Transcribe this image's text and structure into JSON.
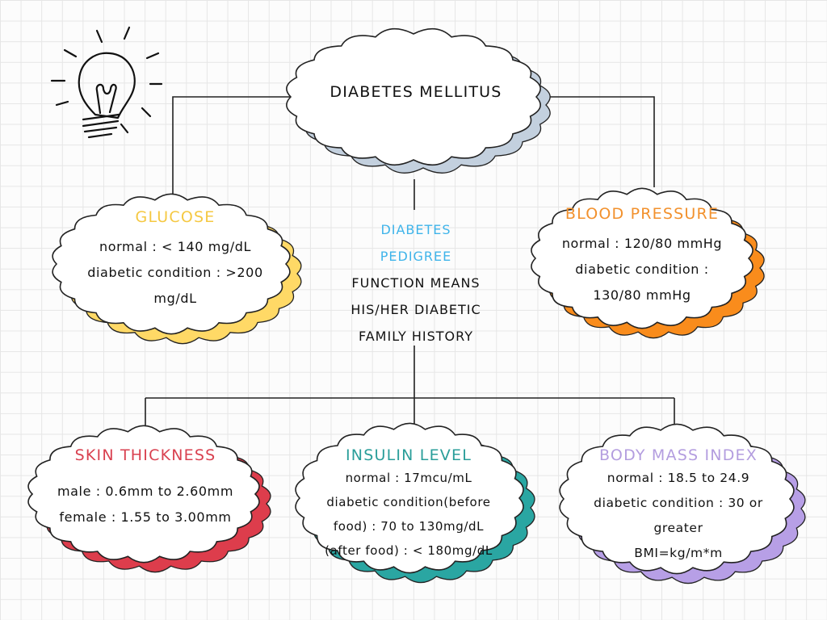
{
  "colors": {
    "line": "#222222",
    "cloud_fill": "#ffffff",
    "main_shadow": "#c3d0de",
    "glucose": "#f5c842",
    "glucose_shadow": "#ffd966",
    "blood_pressure": "#f2912d",
    "blood_pressure_shadow": "#f98c1c",
    "pedigree_accent": "#3fb4ea",
    "skin": "#d94150",
    "skin_shadow": "#dd3d4c",
    "insulin": "#2a9e9a",
    "insulin_shadow": "#2aa6a2",
    "bmi": "#b39ddf",
    "bmi_shadow": "#b79fe6"
  },
  "decoration": {
    "icon": "lightbulb-icon"
  },
  "main": {
    "title": "DIABETES MELLITUS"
  },
  "glucose": {
    "title": "GLUCOSE",
    "lines": [
      "normal : < 140 mg/dL",
      "diabetic condition : >200",
      "mg/dL"
    ]
  },
  "blood_pressure": {
    "title": "BLOOD PRESSURE",
    "lines": [
      "normal : 120/80 mmHg",
      "diabetic condition :",
      "130/80 mmHg"
    ]
  },
  "pedigree": {
    "title_lines": [
      "DIABETES",
      "PEDIGREE"
    ],
    "lines": [
      "FUNCTION MEANS",
      "HIS/HER DIABETIC",
      "FAMILY HISTORY"
    ]
  },
  "skin_thickness": {
    "title": "SKIN THICKNESS",
    "lines": [
      "male : 0.6mm to 2.60mm",
      "female : 1.55 to 3.00mm"
    ]
  },
  "insulin": {
    "title": "INSULIN LEVEL",
    "lines": [
      "normal : 17mcu/mL",
      "diabetic condition(before",
      "food) : 70 to 130mg/dL",
      "(after food) : < 180mg/dL"
    ]
  },
  "bmi": {
    "title": "BODY MASS INDEX",
    "lines": [
      "normal : 18.5 to 24.9",
      "diabetic condition : 30 or",
      "greater",
      "BMI=kg/m*m"
    ]
  }
}
